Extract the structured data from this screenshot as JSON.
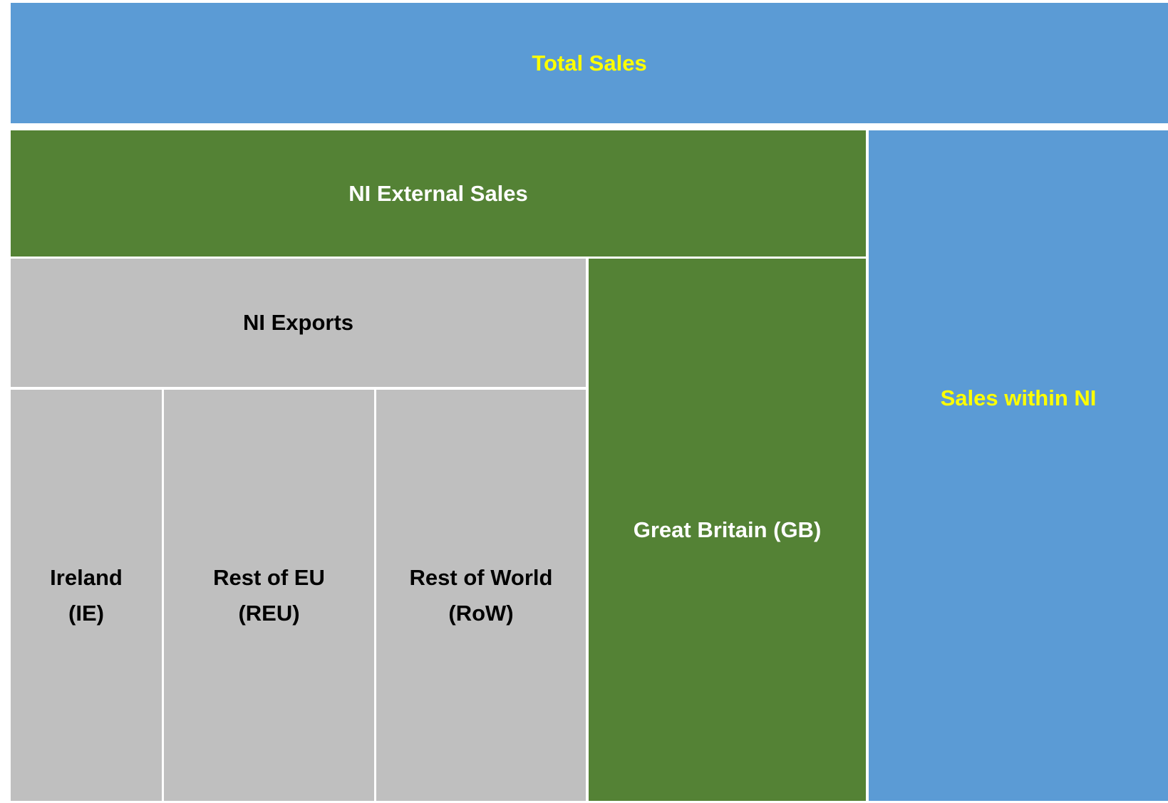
{
  "boxes": [
    {
      "label": "Total Sales"
    },
    {
      "label": "NI External Sales"
    },
    {
      "label": "Sales within NI"
    },
    {
      "label": "NI Exports"
    },
    {
      "label": "Great Britain (GB)"
    },
    {
      "label": "Ireland\n(IE)"
    },
    {
      "label": "Rest of EU\n(REU)"
    },
    {
      "label": "Rest of World\n(RoW)"
    }
  ]
}
